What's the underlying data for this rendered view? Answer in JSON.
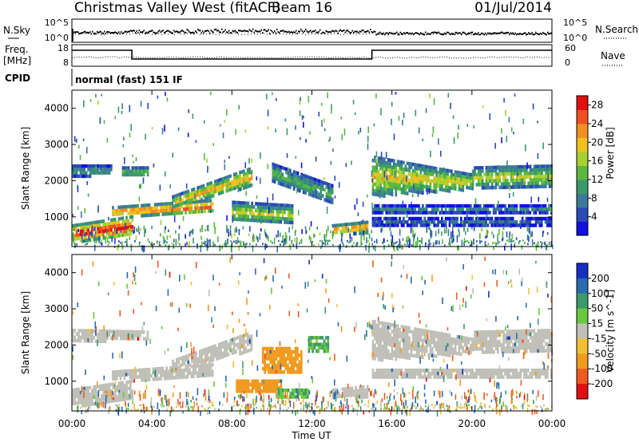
{
  "header": {
    "title": "Christmas Valley West (fitACF)",
    "beam": "Beam 16",
    "date": "01/Jul/2014"
  },
  "strips": {
    "nsky_label": "N.Sky",
    "nsearch_label": "N.Search",
    "freq_label_1": "Freq.",
    "freq_label_2": "[MHz]",
    "nave_label": "Nave",
    "cpid_label": "CPID",
    "cpid_text": "normal (fast) 151 IF",
    "noise_left_ticks": [
      "10^5",
      "10^0"
    ],
    "noise_right_ticks": [
      "10^5",
      "10^0"
    ],
    "freq_left_ticks": [
      "18",
      "8"
    ],
    "nave_right_ticks": [
      "60",
      "0"
    ],
    "freq_steps": [
      {
        "from": "00:00",
        "to": "03:00",
        "value": "high"
      },
      {
        "from": "03:00",
        "to": "15:00",
        "value": "low"
      },
      {
        "from": "15:00",
        "to": "24:00",
        "value": "high"
      }
    ]
  },
  "axes": {
    "xlabel": "Time UT",
    "ylabel": "Slant Range [km]",
    "xticks": [
      "00:00",
      "04:00",
      "08:00",
      "12:00",
      "16:00",
      "20:00",
      "00:00"
    ],
    "xlim_hours": [
      0,
      24
    ],
    "ylim_km": [
      180,
      4500
    ],
    "yticks": [
      "1000",
      "2000",
      "3000",
      "4000"
    ]
  },
  "power_colorbar": {
    "label": "Power [dB]",
    "ticks": [
      "4",
      "8",
      "12",
      "16",
      "20",
      "24",
      "28"
    ],
    "range": [
      0,
      30
    ],
    "colors": [
      "#1010e0",
      "#2a4ab8",
      "#3c7a9a",
      "#3a9a6a",
      "#5ab840",
      "#a8d030",
      "#f0c020",
      "#f09020",
      "#f05020",
      "#e01010"
    ]
  },
  "velocity_colorbar": {
    "label": "Velocity [m s^-1]",
    "ticks": [
      "200",
      "100",
      "50",
      "15",
      "-15",
      "-50",
      "-100",
      "-200"
    ],
    "range": [
      -250,
      250
    ],
    "colors": [
      "#1530c0",
      "#2a6ab0",
      "#3d9a6a",
      "#6ac840",
      "#c0c0b8",
      "#f0c030",
      "#f09a20",
      "#f05a20",
      "#e01010"
    ]
  },
  "chart_data": {
    "type": "heatmap",
    "title": "Christmas Valley West (fitACF)",
    "xlabel": "Time UT",
    "ylabel": "Slant Range [km]",
    "panels": [
      {
        "name": "Power",
        "colorbar_label": "Power [dB]",
        "bands": [
          {
            "t": [
              0,
              3
            ],
            "r_from": [
              350,
              500
            ],
            "r_to": [
              800,
              1050
            ],
            "value": 28
          },
          {
            "t": [
              2,
              7
            ],
            "r_from": [
              1050,
              1150
            ],
            "r_to": [
              1300,
              1500
            ],
            "value": 24
          },
          {
            "t": [
              5,
              9
            ],
            "r_from": [
              1300,
              1900
            ],
            "r_to": [
              1600,
              2400
            ],
            "value": 20
          },
          {
            "t": [
              0,
              2
            ],
            "r_from": [
              2150,
              2200
            ],
            "r_to": [
              2450,
              2450
            ],
            "value": 10
          },
          {
            "t": [
              2.5,
              3.8
            ],
            "r_from": [
              2150,
              2150
            ],
            "r_to": [
              2400,
              2400
            ],
            "value": 14
          },
          {
            "t": [
              8,
              11
            ],
            "r_from": [
              900,
              850
            ],
            "r_to": [
              1450,
              1350
            ],
            "value": 16
          },
          {
            "t": [
              10,
              13
            ],
            "r_from": [
              2000,
              1400
            ],
            "r_to": [
              2500,
              1900
            ],
            "value": 12
          },
          {
            "t": [
              13,
              14.8
            ],
            "r_from": [
              550,
              600
            ],
            "r_to": [
              800,
              900
            ],
            "value": 24
          },
          {
            "t": [
              15,
              20
            ],
            "r_from": [
              1600,
              1800
            ],
            "r_to": [
              2700,
              2200
            ],
            "value": 18
          },
          {
            "t": [
              20,
              24
            ],
            "r_from": [
              1850,
              1850
            ],
            "r_to": [
              2400,
              2450
            ],
            "value": 16
          },
          {
            "t": [
              15,
              24
            ],
            "r_from": [
              1150,
              1150
            ],
            "r_to": [
              1350,
              1350
            ],
            "value": 8
          },
          {
            "t": [
              15,
              24
            ],
            "r_from": [
              800,
              800
            ],
            "r_to": [
              1000,
              1000
            ],
            "value": 6
          }
        ]
      },
      {
        "name": "Velocity",
        "colorbar_label": "Velocity [m s^-1]",
        "bands": [
          {
            "t": [
              0,
              3
            ],
            "r_from": [
              350,
              500
            ],
            "r_to": [
              800,
              1050
            ],
            "value": 0
          },
          {
            "t": [
              2,
              7
            ],
            "r_from": [
              1050,
              1150
            ],
            "r_to": [
              1300,
              1500
            ],
            "value": 0
          },
          {
            "t": [
              5,
              9
            ],
            "r_from": [
              1300,
              1900
            ],
            "r_to": [
              1600,
              2400
            ],
            "value": 0
          },
          {
            "t": [
              0,
              3.8
            ],
            "r_from": [
              2150,
              2150
            ],
            "r_to": [
              2450,
              2400
            ],
            "value": 0
          },
          {
            "t": [
              9.5,
              11.5
            ],
            "r_from": [
              1300,
              1300
            ],
            "r_to": [
              1950,
              1950
            ],
            "value": -60
          },
          {
            "t": [
              8.2,
              10.5
            ],
            "r_from": [
              750,
              750
            ],
            "r_to": [
              1050,
              1050
            ],
            "value": -80
          },
          {
            "t": [
              10.2,
              11.8
            ],
            "r_from": [
              600,
              600
            ],
            "r_to": [
              800,
              800
            ],
            "value": 50
          },
          {
            "t": [
              11.8,
              12.8
            ],
            "r_from": [
              1850,
              1850
            ],
            "r_to": [
              2250,
              2250
            ],
            "value": 50
          },
          {
            "t": [
              13,
              14.8
            ],
            "r_from": [
              550,
              600
            ],
            "r_to": [
              800,
              900
            ],
            "value": 0
          },
          {
            "t": [
              15,
              20
            ],
            "r_from": [
              1600,
              1800
            ],
            "r_to": [
              2700,
              2200
            ],
            "value": 0
          },
          {
            "t": [
              20,
              24
            ],
            "r_from": [
              1850,
              1850
            ],
            "r_to": [
              2400,
              2450
            ],
            "value": 0
          },
          {
            "t": [
              15,
              24
            ],
            "r_from": [
              1150,
              1150
            ],
            "r_to": [
              1350,
              1350
            ],
            "value": 0
          }
        ]
      }
    ]
  }
}
